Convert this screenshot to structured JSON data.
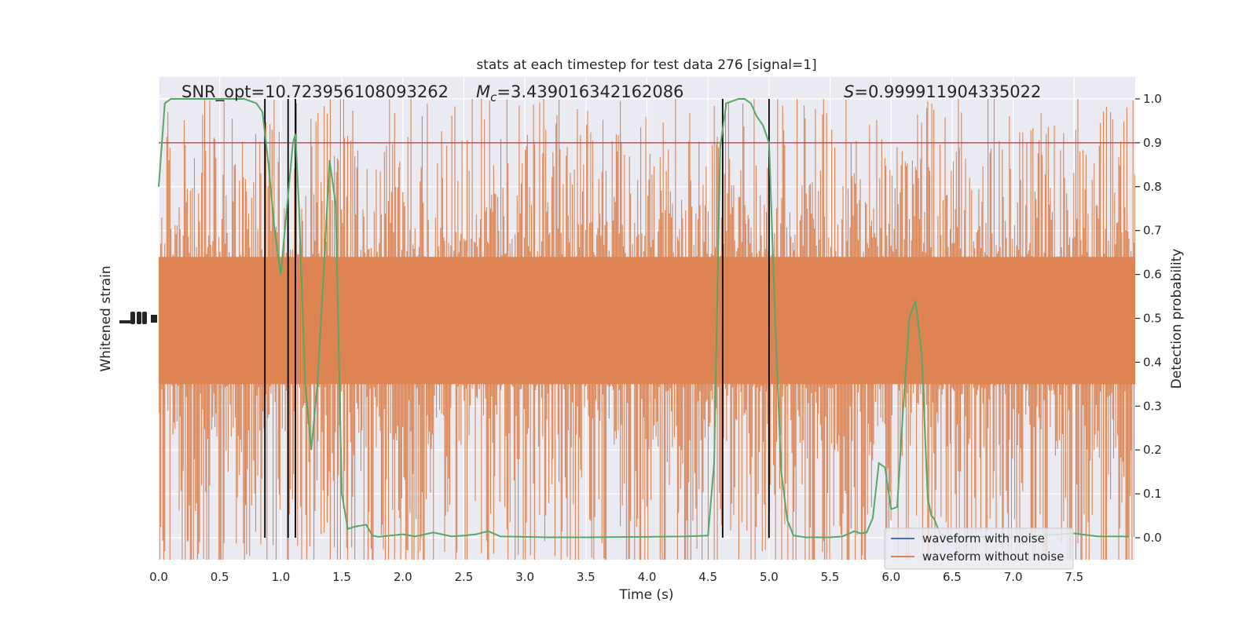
{
  "chart_data": {
    "type": "line",
    "title": "stats at each timestep for test data 276 [signal=1]",
    "xlabel": "Time (s)",
    "ylabel_left": "Whitened strain",
    "ylabel_right": "Detection probability",
    "xlim": [
      0,
      8
    ],
    "ylim_right": [
      -0.05,
      1.05
    ],
    "x_ticks": [
      "0.0",
      "0.5",
      "1.0",
      "1.5",
      "2.0",
      "2.5",
      "3.0",
      "3.5",
      "4.0",
      "4.5",
      "5.0",
      "5.5",
      "6.0",
      "6.5",
      "7.0",
      "7.5"
    ],
    "y_ticks_right": [
      "0.0",
      "0.1",
      "0.2",
      "0.3",
      "0.4",
      "0.5",
      "0.6",
      "0.7",
      "0.8",
      "0.9",
      "1.0"
    ],
    "annotations": {
      "snr": "SNR_opt=10.723956108093262",
      "mc_symbol": "M",
      "mc_sub": "c",
      "mc_value": "=3.439016342162086",
      "s_symbol": "S",
      "s_value": "=0.999911904335022"
    },
    "threshold": 0.9,
    "vertical_lines": [
      0.87,
      1.06,
      1.12,
      4.62,
      5.0
    ],
    "grid": true,
    "legend_position": "lower-right",
    "series": [
      {
        "name": "waveform with noise",
        "color": "#4c72b0",
        "values": []
      },
      {
        "name": "waveform without noise",
        "color": "#dd8452",
        "noise_band": [
          -0.2,
          1.0
        ]
      },
      {
        "color": "#55a868",
        "x": [
          0.0,
          0.05,
          0.1,
          0.15,
          0.2,
          0.3,
          0.4,
          0.5,
          0.6,
          0.7,
          0.8,
          0.85,
          0.9,
          0.95,
          1.0,
          1.05,
          1.1,
          1.12,
          1.15,
          1.2,
          1.25,
          1.3,
          1.35,
          1.4,
          1.45,
          1.5,
          1.55,
          1.6,
          1.7,
          1.75,
          1.8,
          1.9,
          2.0,
          2.1,
          2.25,
          2.4,
          2.5,
          2.6,
          2.7,
          2.8,
          3.0,
          3.2,
          3.5,
          4.0,
          4.3,
          4.5,
          4.55,
          4.6,
          4.65,
          4.7,
          4.75,
          4.8,
          4.85,
          4.9,
          4.95,
          5.0,
          5.05,
          5.1,
          5.15,
          5.2,
          5.3,
          5.4,
          5.5,
          5.6,
          5.7,
          5.75,
          5.8,
          5.85,
          5.9,
          5.95,
          6.0,
          6.05,
          6.1,
          6.15,
          6.2,
          6.25,
          6.3,
          6.33,
          6.35,
          6.4,
          6.45,
          6.5,
          6.55,
          6.6,
          6.7,
          6.8,
          7.0,
          7.2,
          7.5,
          7.7,
          7.9,
          7.95
        ],
        "y": [
          0.8,
          0.99,
          1.0,
          1.0,
          1.0,
          1.0,
          1.0,
          1.0,
          1.0,
          1.0,
          0.99,
          0.97,
          0.85,
          0.7,
          0.6,
          0.75,
          0.9,
          0.92,
          0.75,
          0.35,
          0.2,
          0.35,
          0.6,
          0.86,
          0.76,
          0.1,
          0.02,
          0.025,
          0.03,
          0.005,
          0.002,
          0.005,
          0.008,
          0.003,
          0.012,
          0.003,
          0.005,
          0.008,
          0.015,
          0.003,
          0.002,
          0.001,
          0.001,
          0.002,
          0.003,
          0.005,
          0.17,
          0.89,
          0.99,
          0.995,
          1.0,
          1.0,
          0.99,
          0.96,
          0.94,
          0.9,
          0.5,
          0.15,
          0.04,
          0.005,
          0.001,
          0.001,
          0.001,
          0.003,
          0.015,
          0.01,
          0.012,
          0.045,
          0.17,
          0.16,
          0.065,
          0.07,
          0.3,
          0.5,
          0.54,
          0.42,
          0.09,
          0.05,
          0.045,
          0.01,
          0.003,
          0.002,
          0.002,
          0.002,
          0.002,
          0.002,
          0.002,
          0.005,
          0.01,
          0.003,
          0.003,
          0.002
        ]
      }
    ]
  }
}
